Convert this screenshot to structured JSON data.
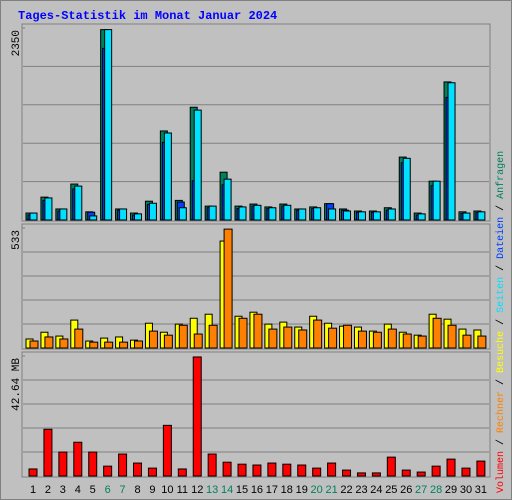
{
  "chart_data": {
    "type": "bar",
    "title": "Tages-Statistik im Monat Januar 2024",
    "title_color": "#0000ff",
    "categories": [
      "1",
      "2",
      "3",
      "4",
      "5",
      "6",
      "7",
      "8",
      "9",
      "10",
      "11",
      "12",
      "13",
      "14",
      "15",
      "16",
      "17",
      "18",
      "19",
      "20",
      "21",
      "22",
      "23",
      "24",
      "25",
      "26",
      "27",
      "28",
      "29",
      "30",
      "31"
    ],
    "category_colors": [
      "#000000",
      "#000000",
      "#000000",
      "#000000",
      "#000000",
      "#00805c",
      "#00805c",
      "#000000",
      "#000000",
      "#000000",
      "#000000",
      "#000000",
      "#00805c",
      "#00805c",
      "#000000",
      "#000000",
      "#000000",
      "#000000",
      "#000000",
      "#00805c",
      "#00805c",
      "#000000",
      "#000000",
      "#000000",
      "#000000",
      "#000000",
      "#00805c",
      "#00805c",
      "#000000",
      "#000000",
      "#000000"
    ],
    "grid_divisions": 5,
    "panels": [
      {
        "ylim": [
          0,
          2350
        ],
        "yticks": [
          2350
        ],
        "series": [
          {
            "name": "Anfragen",
            "color": "#00805c",
            "values": [
              85,
              280,
              135,
              440,
              100,
              2330,
              135,
              85,
              230,
              1090,
              240,
              1380,
              170,
              585,
              170,
              195,
              160,
              195,
              135,
              160,
              200,
              135,
              110,
              110,
              150,
              770,
              85,
              475,
              1690,
              100,
              110
            ]
          },
          {
            "name": "Dateien",
            "color": "#0040ff",
            "values": [
              60,
              240,
              110,
              380,
              95,
              2100,
              120,
              60,
              190,
              950,
              220,
              480,
              150,
              430,
              140,
              170,
              140,
              170,
              120,
              140,
              200,
              120,
              95,
              95,
              120,
              700,
              60,
              420,
              1500,
              80,
              90
            ]
          },
          {
            "name": "Seiten",
            "color": "#00e0ff",
            "values": [
              85,
              270,
              135,
              415,
              50,
              2330,
              135,
              75,
              205,
              1065,
              150,
              1345,
              170,
              500,
              160,
              180,
              150,
              180,
              135,
              150,
              135,
              110,
              100,
              100,
              135,
              755,
              75,
              475,
              1680,
              85,
              100
            ]
          }
        ]
      },
      {
        "ylim": [
          0,
          533
        ],
        "yticks": [
          533
        ],
        "series": [
          {
            "name": "Besuche",
            "color": "#ffff00",
            "values": [
              40,
              70,
              53,
              124,
              31,
              44,
              49,
              35,
              110,
              70,
              106,
              132,
              150,
              475,
              141,
              159,
              106,
              115,
              93,
              141,
              110,
              97,
              93,
              75,
              106,
              70,
              57,
              150,
              128,
              84,
              80
            ]
          },
          {
            "name": "Rechner",
            "color": "#ff8000",
            "values": [
              31,
              49,
              40,
              84,
              26,
              26,
              26,
              31,
              75,
              57,
              101,
              62,
              101,
              528,
              132,
              150,
              84,
              93,
              80,
              124,
              88,
              101,
              75,
              70,
              84,
              62,
              53,
              132,
              101,
              57,
              53
            ]
          }
        ]
      },
      {
        "ylim": [
          0,
          42.64
        ],
        "yticks": [
          {
            "value": 42.64,
            "label": "42.64 MB"
          }
        ],
        "series": [
          {
            "name": "Volumen",
            "color": "#ff0000",
            "values": [
              2.5,
              16.6,
              8.5,
              12,
              8.5,
              3.5,
              7.8,
              4.6,
              2.8,
              18,
              2.5,
              42.3,
              7.8,
              4.9,
              4.2,
              3.9,
              4.6,
              4.2,
              3.9,
              2.8,
              4.6,
              2.1,
              1.1,
              1.1,
              6.7,
              2.1,
              1.4,
              3.5,
              6,
              2.8,
              5.3
            ]
          }
        ]
      }
    ]
  }
}
